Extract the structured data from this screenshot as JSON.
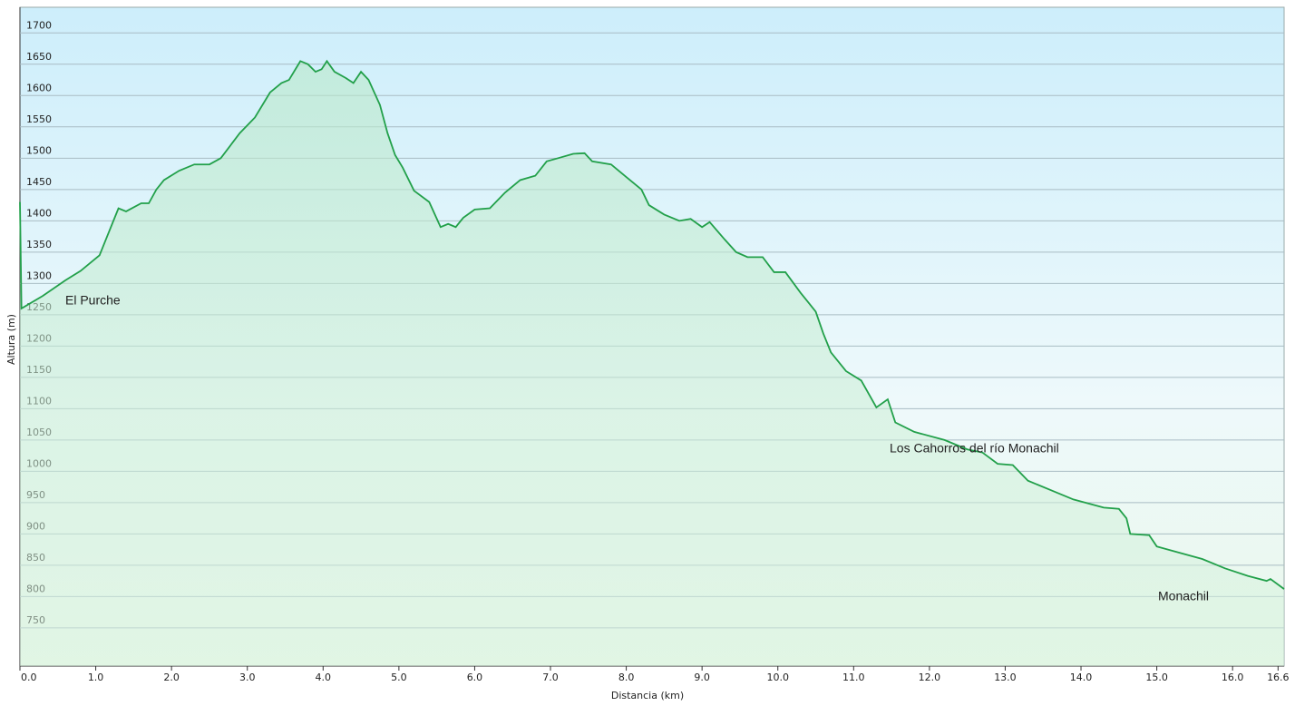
{
  "chart_data": {
    "type": "area-line",
    "y_label": "Altura (m)",
    "x_label": "Distancia  (km)",
    "annotations": [
      "El Purche",
      "Los Cahorros del río Monachil",
      "Monachil"
    ],
    "xlim": [
      0,
      16.68
    ],
    "ylim": [
      689,
      1741
    ],
    "grid": true,
    "color": "#22a04a",
    "xticks": [
      {
        "value": 0,
        "label": "0.0"
      },
      {
        "value": 1,
        "label": "1.0"
      },
      {
        "value": 2,
        "label": "2.0"
      },
      {
        "value": 3,
        "label": "3.0"
      },
      {
        "value": 4,
        "label": "4.0"
      },
      {
        "value": 5,
        "label": "5.0"
      },
      {
        "value": 6,
        "label": "6.0"
      },
      {
        "value": 7,
        "label": "7.0"
      },
      {
        "value": 8,
        "label": "8.0"
      },
      {
        "value": 9,
        "label": "9.0"
      },
      {
        "value": 10,
        "label": "10.0"
      },
      {
        "value": 11,
        "label": "11.0"
      },
      {
        "value": 12,
        "label": "12.0"
      },
      {
        "value": 13,
        "label": "13.0"
      },
      {
        "value": 14,
        "label": "14.0"
      },
      {
        "value": 15,
        "label": "15.0"
      },
      {
        "value": 16,
        "label": "16.0"
      },
      16.6
    ],
    "yticks": [
      750,
      800,
      850,
      900,
      950,
      1000,
      1050,
      1100,
      1150,
      1200,
      1250,
      1300,
      1350,
      1400,
      1450,
      1500,
      1550,
      1600,
      1650,
      1700
    ],
    "x": [
      0,
      0.02,
      0.3,
      0.6,
      0.8,
      0.95,
      1.05,
      1.15,
      1.3,
      1.4,
      1.6,
      1.7,
      1.8,
      1.9,
      2.1,
      2.3,
      2.5,
      2.65,
      2.9,
      3.1,
      3.3,
      3.45,
      3.55,
      3.65,
      3.7,
      3.8,
      3.9,
      3.98,
      4.05,
      4.15,
      4.3,
      4.4,
      4.5,
      4.6,
      4.75,
      4.85,
      4.95,
      5.05,
      5.2,
      5.4,
      5.55,
      5.65,
      5.75,
      5.85,
      6.0,
      6.2,
      6.4,
      6.6,
      6.8,
      6.95,
      7.1,
      7.3,
      7.45,
      7.55,
      7.8,
      8.0,
      8.2,
      8.3,
      8.5,
      8.7,
      8.85,
      9.0,
      9.1,
      9.3,
      9.45,
      9.6,
      9.8,
      9.95,
      10.1,
      10.3,
      10.5,
      10.6,
      10.7,
      10.9,
      11.1,
      11.3,
      11.45,
      11.55,
      11.8,
      12.2,
      12.5,
      12.7,
      12.9,
      13.1,
      13.3,
      13.6,
      13.9,
      14.3,
      14.5,
      14.6,
      14.65,
      14.9,
      15.0,
      15.3,
      15.6,
      15.9,
      16.2,
      16.45,
      16.5,
      16.68
    ],
    "values": [
      1430,
      1260,
      1280,
      1305,
      1320,
      1335,
      1345,
      1375,
      1420,
      1415,
      1428,
      1428,
      1450,
      1465,
      1480,
      1490,
      1490,
      1500,
      1540,
      1565,
      1605,
      1620,
      1625,
      1645,
      1655,
      1650,
      1638,
      1642,
      1655,
      1638,
      1628,
      1620,
      1638,
      1625,
      1585,
      1540,
      1505,
      1485,
      1448,
      1430,
      1390,
      1395,
      1390,
      1405,
      1418,
      1420,
      1445,
      1465,
      1472,
      1495,
      1500,
      1507,
      1508,
      1495,
      1490,
      1470,
      1450,
      1425,
      1410,
      1400,
      1403,
      1390,
      1398,
      1370,
      1350,
      1342,
      1342,
      1318,
      1318,
      1285,
      1255,
      1220,
      1190,
      1160,
      1145,
      1102,
      1115,
      1078,
      1063,
      1050,
      1035,
      1030,
      1012,
      1010,
      985,
      970,
      955,
      942,
      940,
      925,
      900,
      898,
      880,
      870,
      860,
      845,
      833,
      825,
      828,
      812
    ]
  }
}
